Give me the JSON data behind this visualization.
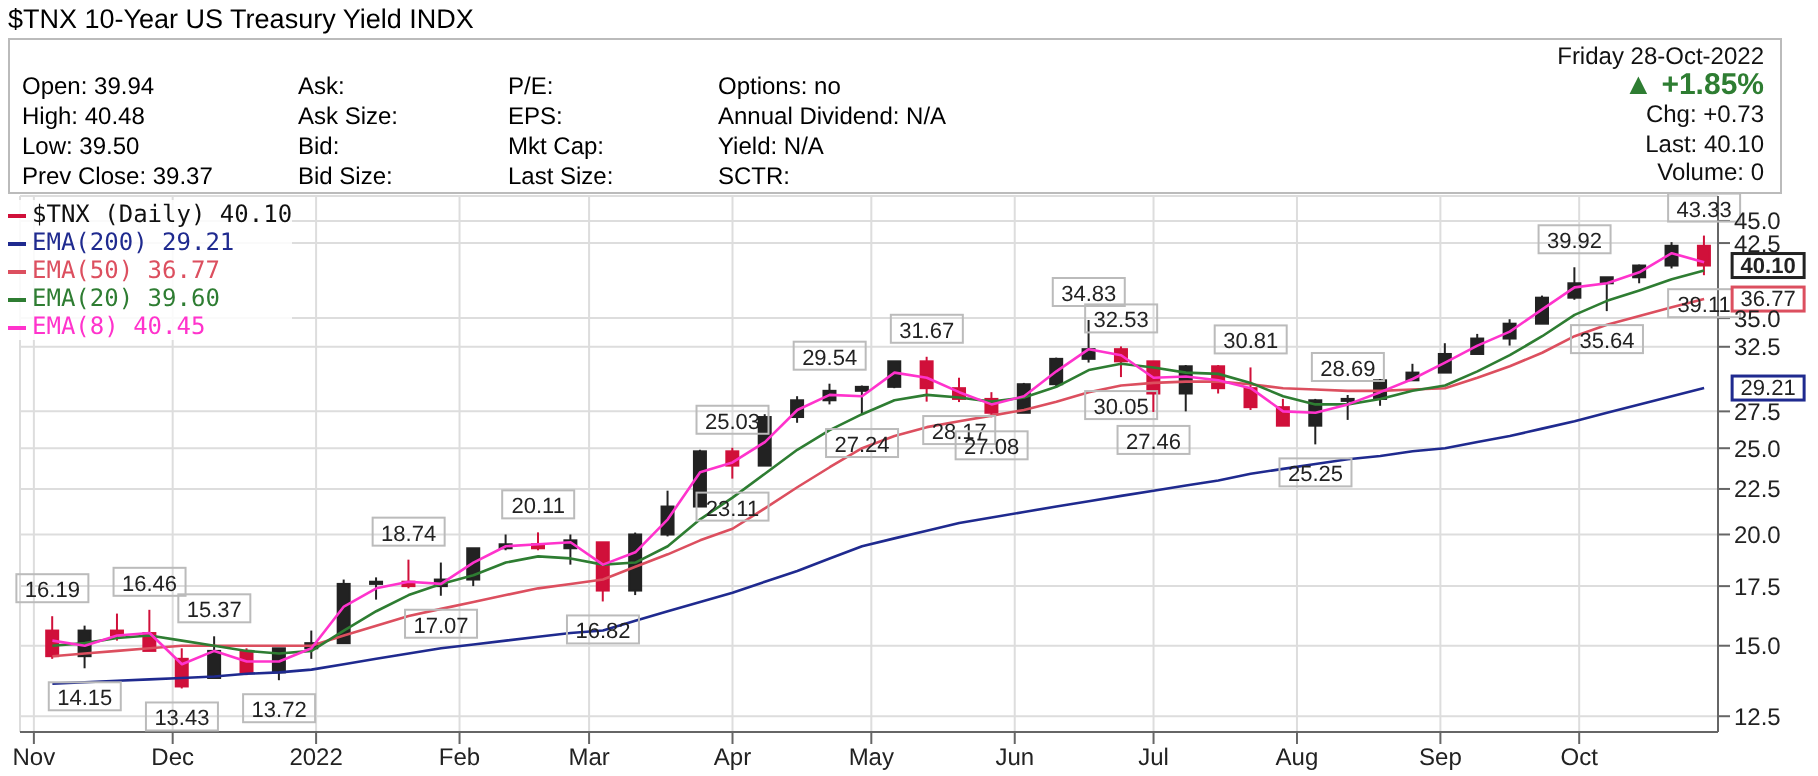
{
  "chart_data": {
    "type": "candlestick",
    "title": "$TNX 10-Year US Treasury Yield INDX",
    "annotations": [
      "Open: 39.94",
      "High: 40.48",
      "Low: 39.50",
      "Prev Close: 39.37",
      "Ask:",
      "Ask Size:",
      "Bid:",
      "Bid Size:",
      "P/E:",
      "EPS:",
      "Mkt Cap:",
      "Last Size:",
      "Options: no",
      "Annual Dividend: N/A",
      "Yield: N/A",
      "SCTR:",
      "Friday 28-Oct-2022",
      "▲ +1.85%",
      "Chg: +0.73",
      "Last: 40.10",
      "Volume: 0",
      {
        "text": "16.19",
        "x": "2021-11-05",
        "y": 16.19
      },
      {
        "text": "14.15",
        "x": "2021-11-12",
        "y": 14.15
      },
      {
        "text": "16.46",
        "x": "2021-11-26",
        "y": 16.46
      },
      {
        "text": "13.43",
        "x": "2021-12-03",
        "y": 13.43
      },
      {
        "text": "15.37",
        "x": "2021-12-10",
        "y": 15.37
      },
      {
        "text": "13.72",
        "x": "2021-12-24",
        "y": 13.72
      },
      {
        "text": "18.74",
        "x": "2022-01-21",
        "y": 18.74
      },
      {
        "text": "17.07",
        "x": "2022-01-28",
        "y": 17.07
      },
      {
        "text": "20.11",
        "x": "2022-02-18",
        "y": 20.11
      },
      {
        "text": "16.82",
        "x": "2022-03-04",
        "y": 16.82
      },
      {
        "text": "25.03",
        "x": "2022-04-01",
        "y": 25.03
      },
      {
        "text": "23.11",
        "x": "2022-04-01",
        "y": 23.11
      },
      {
        "text": "29.54",
        "x": "2022-04-22",
        "y": 29.54
      },
      {
        "text": "27.24",
        "x": "2022-04-29",
        "y": 27.24
      },
      {
        "text": "31.67",
        "x": "2022-05-13",
        "y": 31.67
      },
      {
        "text": "28.17",
        "x": "2022-05-20",
        "y": 28.17
      },
      {
        "text": "27.08",
        "x": "2022-05-27",
        "y": 27.08
      },
      {
        "text": "34.83",
        "x": "2022-06-17",
        "y": 34.83
      },
      {
        "text": "32.53",
        "x": "2022-06-24",
        "y": 32.53
      },
      {
        "text": "30.05",
        "x": "2022-06-24",
        "y": 30.05
      },
      {
        "text": "27.46",
        "x": "2022-07-01",
        "y": 27.46
      },
      {
        "text": "30.81",
        "x": "2022-07-22",
        "y": 30.81
      },
      {
        "text": "25.25",
        "x": "2022-08-05",
        "y": 25.25
      },
      {
        "text": "28.69",
        "x": "2022-08-12",
        "y": 28.69
      },
      {
        "text": "39.92",
        "x": "2022-09-30",
        "y": 39.92
      },
      {
        "text": "35.64",
        "x": "2022-10-07",
        "y": 35.64
      },
      {
        "text": "43.33",
        "x": "2022-10-28",
        "y": 43.33
      },
      {
        "text": "39.11",
        "x": "2022-10-28",
        "y": 39.11
      },
      {
        "text": "40.10",
        "x": "2022-10-28",
        "y": 40.1
      },
      {
        "text": "36.77",
        "x": "2022-10-28",
        "y": 36.77
      },
      {
        "text": "29.21",
        "x": "2022-10-28",
        "y": 29.21
      }
    ],
    "x": [
      "2021-11-05",
      "2021-11-12",
      "2021-11-19",
      "2021-11-26",
      "2021-12-03",
      "2021-12-10",
      "2021-12-17",
      "2021-12-24",
      "2021-12-31",
      "2022-01-07",
      "2022-01-14",
      "2022-01-21",
      "2022-01-28",
      "2022-02-04",
      "2022-02-11",
      "2022-02-18",
      "2022-02-25",
      "2022-03-04",
      "2022-03-11",
      "2022-03-18",
      "2022-03-25",
      "2022-04-01",
      "2022-04-08",
      "2022-04-15",
      "2022-04-22",
      "2022-04-29",
      "2022-05-06",
      "2022-05-13",
      "2022-05-20",
      "2022-05-27",
      "2022-06-03",
      "2022-06-10",
      "2022-06-17",
      "2022-06-24",
      "2022-07-01",
      "2022-07-08",
      "2022-07-15",
      "2022-07-22",
      "2022-07-29",
      "2022-08-05",
      "2022-08-12",
      "2022-08-19",
      "2022-08-26",
      "2022-09-02",
      "2022-09-09",
      "2022-09-16",
      "2022-09-23",
      "2022-09-30",
      "2022-10-07",
      "2022-10-14",
      "2022-10-21",
      "2022-10-28"
    ],
    "series": [
      {
        "type": "candlestick",
        "name": "$TNX (Daily) 40.10",
        "colors": [
          "#d0103a",
          "#222222",
          "#d0103a",
          "#d0103a",
          "#d0103a",
          "#222222",
          "#d0103a",
          "#222222",
          "#222222",
          "#222222",
          "#222222",
          "#d0103a",
          "#222222",
          "#222222",
          "#222222",
          "#d0103a",
          "#222222",
          "#d0103a",
          "#222222",
          "#222222",
          "#222222",
          "#d0103a",
          "#222222",
          "#222222",
          "#222222",
          "#222222",
          "#222222",
          "#d0103a",
          "#d0103a",
          "#d0103a",
          "#222222",
          "#222222",
          "#222222",
          "#d0103a",
          "#d0103a",
          "#222222",
          "#d0103a",
          "#d0103a",
          "#d0103a",
          "#222222",
          "#222222",
          "#222222",
          "#222222",
          "#222222",
          "#222222",
          "#222222",
          "#222222",
          "#222222",
          "#222222",
          "#222222",
          "#222222",
          "#d0103a"
        ],
        "ohlc": [
          [
            15.6,
            16.19,
            14.5,
            14.6
          ],
          [
            14.6,
            15.8,
            14.15,
            15.6
          ],
          [
            15.6,
            16.3,
            15.2,
            15.4
          ],
          [
            15.5,
            16.46,
            14.8,
            14.8
          ],
          [
            14.5,
            14.9,
            13.43,
            13.5
          ],
          [
            13.8,
            15.37,
            13.8,
            14.8
          ],
          [
            14.8,
            14.9,
            13.9,
            14.0
          ],
          [
            14.0,
            14.9,
            13.72,
            14.9
          ],
          [
            14.9,
            15.6,
            14.5,
            15.1
          ],
          [
            15.1,
            17.8,
            15.1,
            17.6
          ],
          [
            17.6,
            17.9,
            16.9,
            17.7
          ],
          [
            17.7,
            18.74,
            17.4,
            17.5
          ],
          [
            17.5,
            18.6,
            17.07,
            17.8
          ],
          [
            17.8,
            19.3,
            17.5,
            19.3
          ],
          [
            19.3,
            20.0,
            19.2,
            19.5
          ],
          [
            19.5,
            20.11,
            19.2,
            19.3
          ],
          [
            19.3,
            20.0,
            18.5,
            19.7
          ],
          [
            19.6,
            19.6,
            16.82,
            17.3
          ],
          [
            17.3,
            20.1,
            17.1,
            20.0
          ],
          [
            20.0,
            22.4,
            19.9,
            21.5
          ],
          [
            21.5,
            24.9,
            21.5,
            24.8
          ],
          [
            24.8,
            25.03,
            23.11,
            23.9
          ],
          [
            23.9,
            27.3,
            23.9,
            27.1
          ],
          [
            27.1,
            28.6,
            26.7,
            28.3
          ],
          [
            28.3,
            29.54,
            28.0,
            29.0
          ],
          [
            29.0,
            29.4,
            27.24,
            29.3
          ],
          [
            29.3,
            31.3,
            29.2,
            31.3
          ],
          [
            31.3,
            31.67,
            28.2,
            29.2
          ],
          [
            29.2,
            30.0,
            28.17,
            28.4
          ],
          [
            28.4,
            28.9,
            27.08,
            27.4
          ],
          [
            27.4,
            29.6,
            27.4,
            29.5
          ],
          [
            29.5,
            31.6,
            29.3,
            31.5
          ],
          [
            31.5,
            34.83,
            31.2,
            32.3
          ],
          [
            32.3,
            32.53,
            30.05,
            31.3
          ],
          [
            31.3,
            31.3,
            27.46,
            28.8
          ],
          [
            28.8,
            31.0,
            27.5,
            30.9
          ],
          [
            30.9,
            31.0,
            28.8,
            29.2
          ],
          [
            29.2,
            30.81,
            27.6,
            27.8
          ],
          [
            27.8,
            28.4,
            26.5,
            26.5
          ],
          [
            26.5,
            28.4,
            25.25,
            28.3
          ],
          [
            28.3,
            28.69,
            26.9,
            28.4
          ],
          [
            28.4,
            29.9,
            27.9,
            29.8
          ],
          [
            29.8,
            31.1,
            29.8,
            30.4
          ],
          [
            30.4,
            32.8,
            30.4,
            31.9
          ],
          [
            31.9,
            33.6,
            31.9,
            33.2
          ],
          [
            33.2,
            34.9,
            32.6,
            34.5
          ],
          [
            34.5,
            37.1,
            34.5,
            36.9
          ],
          [
            36.9,
            39.92,
            36.7,
            38.3
          ],
          [
            38.3,
            38.9,
            35.64,
            38.9
          ],
          [
            38.9,
            40.2,
            38.3,
            40.1
          ],
          [
            40.1,
            42.6,
            39.8,
            42.2
          ],
          [
            42.2,
            43.33,
            39.11,
            40.1
          ]
        ]
      },
      {
        "type": "line",
        "name": "EMA(200) 29.21",
        "color": "#1f2a8f",
        "values": [
          13.6,
          13.65,
          13.7,
          13.75,
          13.8,
          13.85,
          13.95,
          14.0,
          14.1,
          14.3,
          14.5,
          14.7,
          14.9,
          15.05,
          15.2,
          15.35,
          15.5,
          15.6,
          16.0,
          16.4,
          16.8,
          17.2,
          17.7,
          18.2,
          18.8,
          19.4,
          19.8,
          20.2,
          20.6,
          20.9,
          21.2,
          21.5,
          21.8,
          22.1,
          22.4,
          22.7,
          23.0,
          23.4,
          23.7,
          24.0,
          24.3,
          24.5,
          24.8,
          25.0,
          25.4,
          25.8,
          26.3,
          26.8,
          27.4,
          28.0,
          28.6,
          29.21
        ]
      },
      {
        "type": "line",
        "name": "EMA(50) 36.77",
        "color": "#dc4f5f",
        "values": [
          14.6,
          14.7,
          14.8,
          14.9,
          15.0,
          15.0,
          15.0,
          15.0,
          15.0,
          15.4,
          15.8,
          16.2,
          16.5,
          16.8,
          17.1,
          17.4,
          17.6,
          17.8,
          18.4,
          19.0,
          19.7,
          20.3,
          21.4,
          22.6,
          23.8,
          25.0,
          25.8,
          26.4,
          26.8,
          27.2,
          27.6,
          28.2,
          28.9,
          29.4,
          29.6,
          29.7,
          29.7,
          29.5,
          29.2,
          29.1,
          29.0,
          29.0,
          29.1,
          29.2,
          30.0,
          30.9,
          32.0,
          33.4,
          34.4,
          35.2,
          36.0,
          36.77
        ]
      },
      {
        "type": "line",
        "name": "EMA(20) 39.60",
        "color": "#2e7d32",
        "values": [
          15.0,
          15.1,
          15.3,
          15.4,
          15.2,
          15.0,
          14.8,
          14.7,
          14.8,
          15.6,
          16.4,
          17.1,
          17.6,
          18.0,
          18.6,
          18.9,
          18.8,
          18.5,
          18.6,
          19.4,
          20.8,
          22.0,
          23.4,
          24.9,
          26.2,
          27.3,
          28.3,
          28.7,
          28.5,
          28.2,
          28.5,
          29.3,
          30.6,
          31.1,
          30.8,
          30.4,
          30.3,
          29.6,
          28.6,
          28.0,
          28.0,
          28.4,
          29.0,
          29.4,
          30.5,
          31.8,
          33.4,
          35.3,
          36.6,
          37.6,
          38.7,
          39.6
        ]
      },
      {
        "type": "line",
        "name": "EMA(8) 40.45",
        "color": "#ff33cc",
        "values": [
          15.2,
          15.0,
          15.4,
          15.5,
          14.3,
          14.8,
          14.4,
          14.4,
          14.9,
          16.6,
          17.4,
          17.7,
          17.6,
          18.6,
          19.4,
          19.5,
          19.6,
          18.5,
          19.1,
          20.8,
          23.5,
          24.1,
          25.4,
          27.6,
          28.7,
          28.6,
          30.4,
          30.0,
          28.9,
          28.0,
          28.6,
          30.5,
          32.3,
          31.8,
          30.0,
          30.1,
          29.8,
          29.2,
          27.5,
          27.4,
          28.0,
          28.9,
          29.9,
          31.2,
          32.6,
          33.8,
          35.8,
          37.9,
          38.3,
          39.4,
          41.4,
          40.45
        ]
      }
    ],
    "xlim": [
      "2021-10-29",
      "2022-10-31"
    ],
    "xticks": [
      {
        "value": "2021-11-01",
        "label": "Nov"
      },
      {
        "value": "2021-12-01",
        "label": "Dec"
      },
      {
        "value": "2022-01-01",
        "label": "2022"
      },
      {
        "value": "2022-02-01",
        "label": "Feb"
      },
      {
        "value": "2022-03-01",
        "label": "Mar"
      },
      {
        "value": "2022-04-01",
        "label": "Apr"
      },
      {
        "value": "2022-05-01",
        "label": "May"
      },
      {
        "value": "2022-06-01",
        "label": "Jun"
      },
      {
        "value": "2022-07-01",
        "label": "Jul"
      },
      {
        "value": "2022-08-01",
        "label": "Aug"
      },
      {
        "value": "2022-09-01",
        "label": "Sep"
      },
      {
        "value": "2022-10-01",
        "label": "Oct"
      }
    ],
    "ylim": [
      12,
      48
    ],
    "yticks": [
      {
        "value": 12.5,
        "label": "12.5"
      },
      {
        "value": 15,
        "label": "15.0"
      },
      {
        "value": 17.5,
        "label": "17.5"
      },
      {
        "value": 20,
        "label": "20.0"
      },
      {
        "value": 22.5,
        "label": "22.5"
      },
      {
        "value": 25,
        "label": "25.0"
      },
      {
        "value": 27.5,
        "label": "27.5"
      },
      {
        "value": 32.5,
        "label": "32.5"
      },
      {
        "value": 35,
        "label": "35.0"
      },
      {
        "value": 42.5,
        "label": "42.5"
      },
      {
        "value": 45,
        "label": "45.0"
      }
    ],
    "log": true,
    "grid": true,
    "legend": "top left",
    "marker": "none",
    "line_style": "solid"
  }
}
